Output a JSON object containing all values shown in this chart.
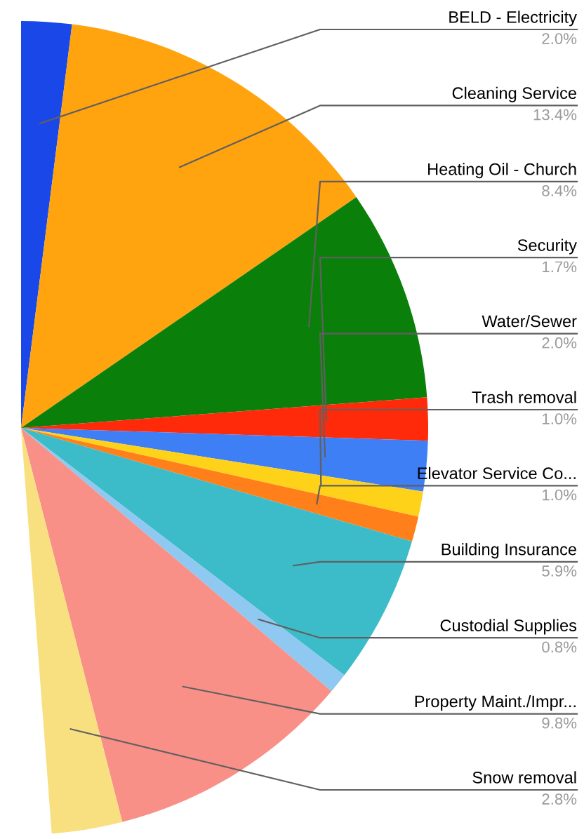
{
  "chart_data": {
    "type": "pie",
    "categories": [
      "BELD - Electricity",
      "Cleaning Service",
      "Heating Oil - Church",
      "Security",
      "Water/Sewer",
      "Trash removal",
      "Elevator Service Co...",
      "Building Insurance",
      "Custodial Supplies",
      "Property Maint./Impr...",
      "Snow removal"
    ],
    "values": [
      2.0,
      13.4,
      8.4,
      1.7,
      2.0,
      1.0,
      1.0,
      5.9,
      0.8,
      9.8,
      2.8
    ],
    "colors": [
      "#1a48e8",
      "#ffa30f",
      "#0a7f0a",
      "#ff2a0a",
      "#3f7ff5",
      "#ffd21a",
      "#ff7f1a",
      "#3cbcc8",
      "#8fc8f0",
      "#f89088",
      "#f8e080"
    ],
    "value_labels": [
      "2.0%",
      "13.4%",
      "8.4%",
      "1.7%",
      "2.0%",
      "1.0%",
      "1.0%",
      "5.9%",
      "0.8%",
      "9.8%",
      "2.8%"
    ]
  }
}
